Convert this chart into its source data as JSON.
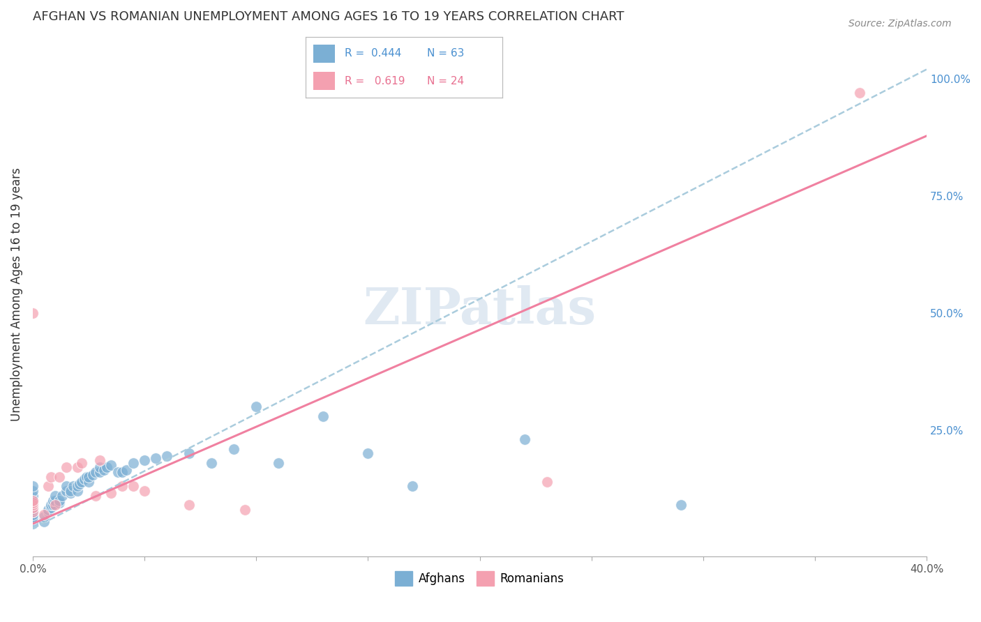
{
  "title": "AFGHAN VS ROMANIAN UNEMPLOYMENT AMONG AGES 16 TO 19 YEARS CORRELATION CHART",
  "source": "Source: ZipAtlas.com",
  "ylabel": "Unemployment Among Ages 16 to 19 years",
  "xlim": [
    0.0,
    0.4
  ],
  "ylim": [
    -0.02,
    1.1
  ],
  "xticks": [
    0.0,
    0.05,
    0.1,
    0.15,
    0.2,
    0.25,
    0.3,
    0.35,
    0.4
  ],
  "xticklabels": [
    "0.0%",
    "",
    "",
    "",
    "",
    "",
    "",
    "",
    "40.0%"
  ],
  "yticks_right": [
    0.0,
    0.25,
    0.5,
    0.75,
    1.0
  ],
  "yticklabels_right": [
    "",
    "25.0%",
    "50.0%",
    "75.0%",
    "100.0%"
  ],
  "afghan_color": "#7bafd4",
  "romanian_color": "#f4a0b0",
  "afghan_line_color": "#7bafd4",
  "romanian_line_color": "#f080a0",
  "afghan_R": 0.444,
  "afghan_N": 63,
  "romanian_R": 0.619,
  "romanian_N": 24,
  "watermark": "ZIPatlas",
  "watermark_color": "#c8d8e8",
  "legend_label_afghan": "Afghans",
  "legend_label_romanian": "Romanians",
  "afghan_x": [
    0.0,
    0.0,
    0.0,
    0.0,
    0.0,
    0.0,
    0.0,
    0.0,
    0.0,
    0.0,
    0.0,
    0.0,
    0.0,
    0.005,
    0.005,
    0.007,
    0.007,
    0.008,
    0.008,
    0.009,
    0.009,
    0.01,
    0.01,
    0.012,
    0.012,
    0.013,
    0.015,
    0.015,
    0.017,
    0.017,
    0.018,
    0.02,
    0.02,
    0.021,
    0.022,
    0.023,
    0.024,
    0.025,
    0.025,
    0.027,
    0.028,
    0.03,
    0.03,
    0.032,
    0.033,
    0.035,
    0.038,
    0.04,
    0.042,
    0.045,
    0.05,
    0.055,
    0.06,
    0.07,
    0.08,
    0.09,
    0.1,
    0.11,
    0.13,
    0.15,
    0.17,
    0.22,
    0.29
  ],
  "afghan_y": [
    0.05,
    0.06,
    0.065,
    0.07,
    0.075,
    0.08,
    0.085,
    0.09,
    0.095,
    0.1,
    0.11,
    0.12,
    0.13,
    0.055,
    0.065,
    0.075,
    0.08,
    0.085,
    0.09,
    0.09,
    0.1,
    0.1,
    0.11,
    0.095,
    0.1,
    0.11,
    0.12,
    0.13,
    0.115,
    0.12,
    0.13,
    0.12,
    0.13,
    0.135,
    0.14,
    0.145,
    0.15,
    0.14,
    0.15,
    0.155,
    0.16,
    0.16,
    0.17,
    0.165,
    0.17,
    0.175,
    0.16,
    0.16,
    0.165,
    0.18,
    0.185,
    0.19,
    0.195,
    0.2,
    0.18,
    0.21,
    0.3,
    0.18,
    0.28,
    0.2,
    0.13,
    0.23,
    0.09
  ],
  "romanian_x": [
    0.0,
    0.0,
    0.0,
    0.0,
    0.0,
    0.0,
    0.005,
    0.007,
    0.008,
    0.01,
    0.012,
    0.015,
    0.02,
    0.022,
    0.028,
    0.03,
    0.035,
    0.04,
    0.045,
    0.05,
    0.07,
    0.095,
    0.23,
    0.37
  ],
  "romanian_y": [
    0.075,
    0.085,
    0.09,
    0.095,
    0.1,
    0.5,
    0.07,
    0.13,
    0.15,
    0.09,
    0.15,
    0.17,
    0.17,
    0.18,
    0.11,
    0.185,
    0.115,
    0.13,
    0.13,
    0.12,
    0.09,
    0.08,
    0.14,
    0.97
  ]
}
